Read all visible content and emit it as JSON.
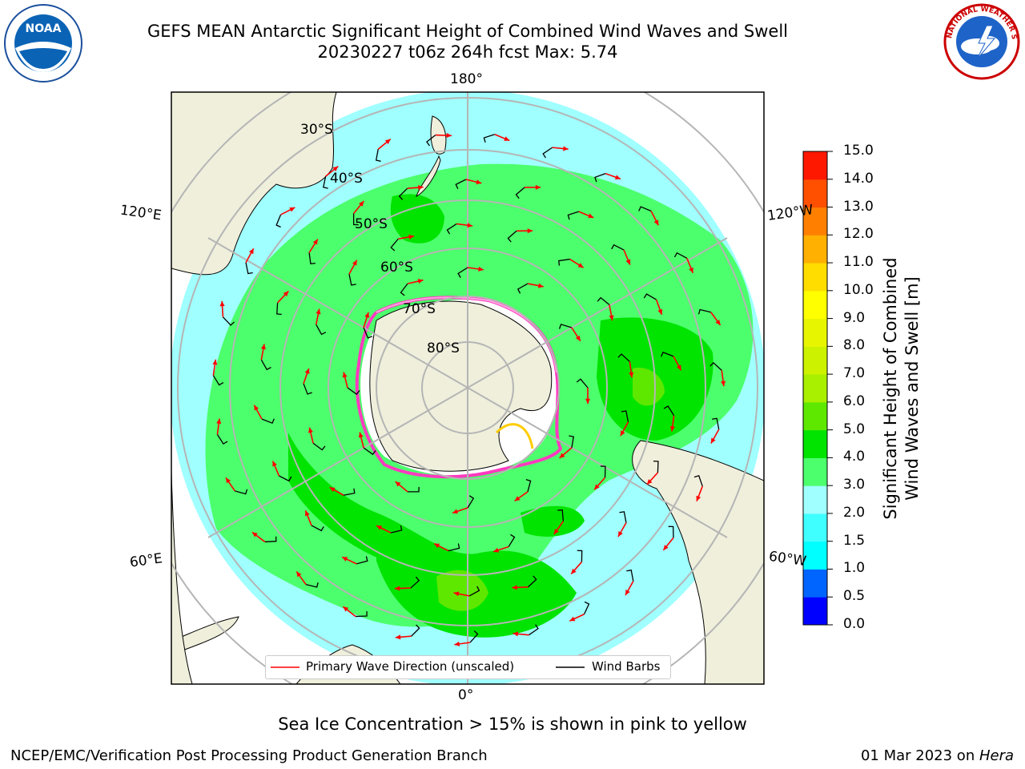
{
  "header": {
    "title_line1": "GEFS MEAN Antarctic Significant Height of Combined Wind Waves and Swell",
    "title_line2": "20230227 t06z 264h fcst   Max: 5.74"
  },
  "logos": {
    "left_text": "NOAA",
    "right_text": "NATIONAL WEATHER SERVICE"
  },
  "map": {
    "longitude_labels": {
      "top": "180°",
      "bottom": "0°",
      "upper_left": "120°E",
      "upper_right": "120°W",
      "lower_left": "60°E",
      "lower_right": "60°W"
    },
    "latitude_labels": [
      "30°S",
      "40°S",
      "50°S",
      "60°S",
      "70°S",
      "80°S"
    ]
  },
  "colorbar": {
    "label_line1": "Significant Height of Combined",
    "label_line2": "Wind Waves and Swell [m]",
    "ticks": [
      "0.0",
      "0.5",
      "1.0",
      "1.5",
      "2.0",
      "3.0",
      "4.0",
      "5.0",
      "6.0",
      "7.0",
      "8.0",
      "9.0",
      "10.0",
      "11.0",
      "12.0",
      "13.0",
      "14.0",
      "15.0"
    ],
    "colors": [
      "#0000ff",
      "#0064ff",
      "#00ffff",
      "#40ffff",
      "#a0ffff",
      "#4cff6c",
      "#00e400",
      "#5ee800",
      "#a8f000",
      "#ccf200",
      "#e8f500",
      "#ffff00",
      "#ffdd00",
      "#ffb000",
      "#ff8000",
      "#ff5000",
      "#ff1800"
    ]
  },
  "legend": {
    "wave_direction": "Primary Wave Direction (unscaled)",
    "wind_barbs": "Wind Barbs",
    "wave_color": "#ff0000",
    "barb_color": "#000000"
  },
  "footer": {
    "sea_ice_note": "Sea Ice Concentration > 15% is shown in pink to yellow",
    "branch": "NCEP/EMC/Verification Post Processing Product Generation Branch",
    "date_prefix": "01 Mar 2023 on ",
    "host": "Hera"
  }
}
